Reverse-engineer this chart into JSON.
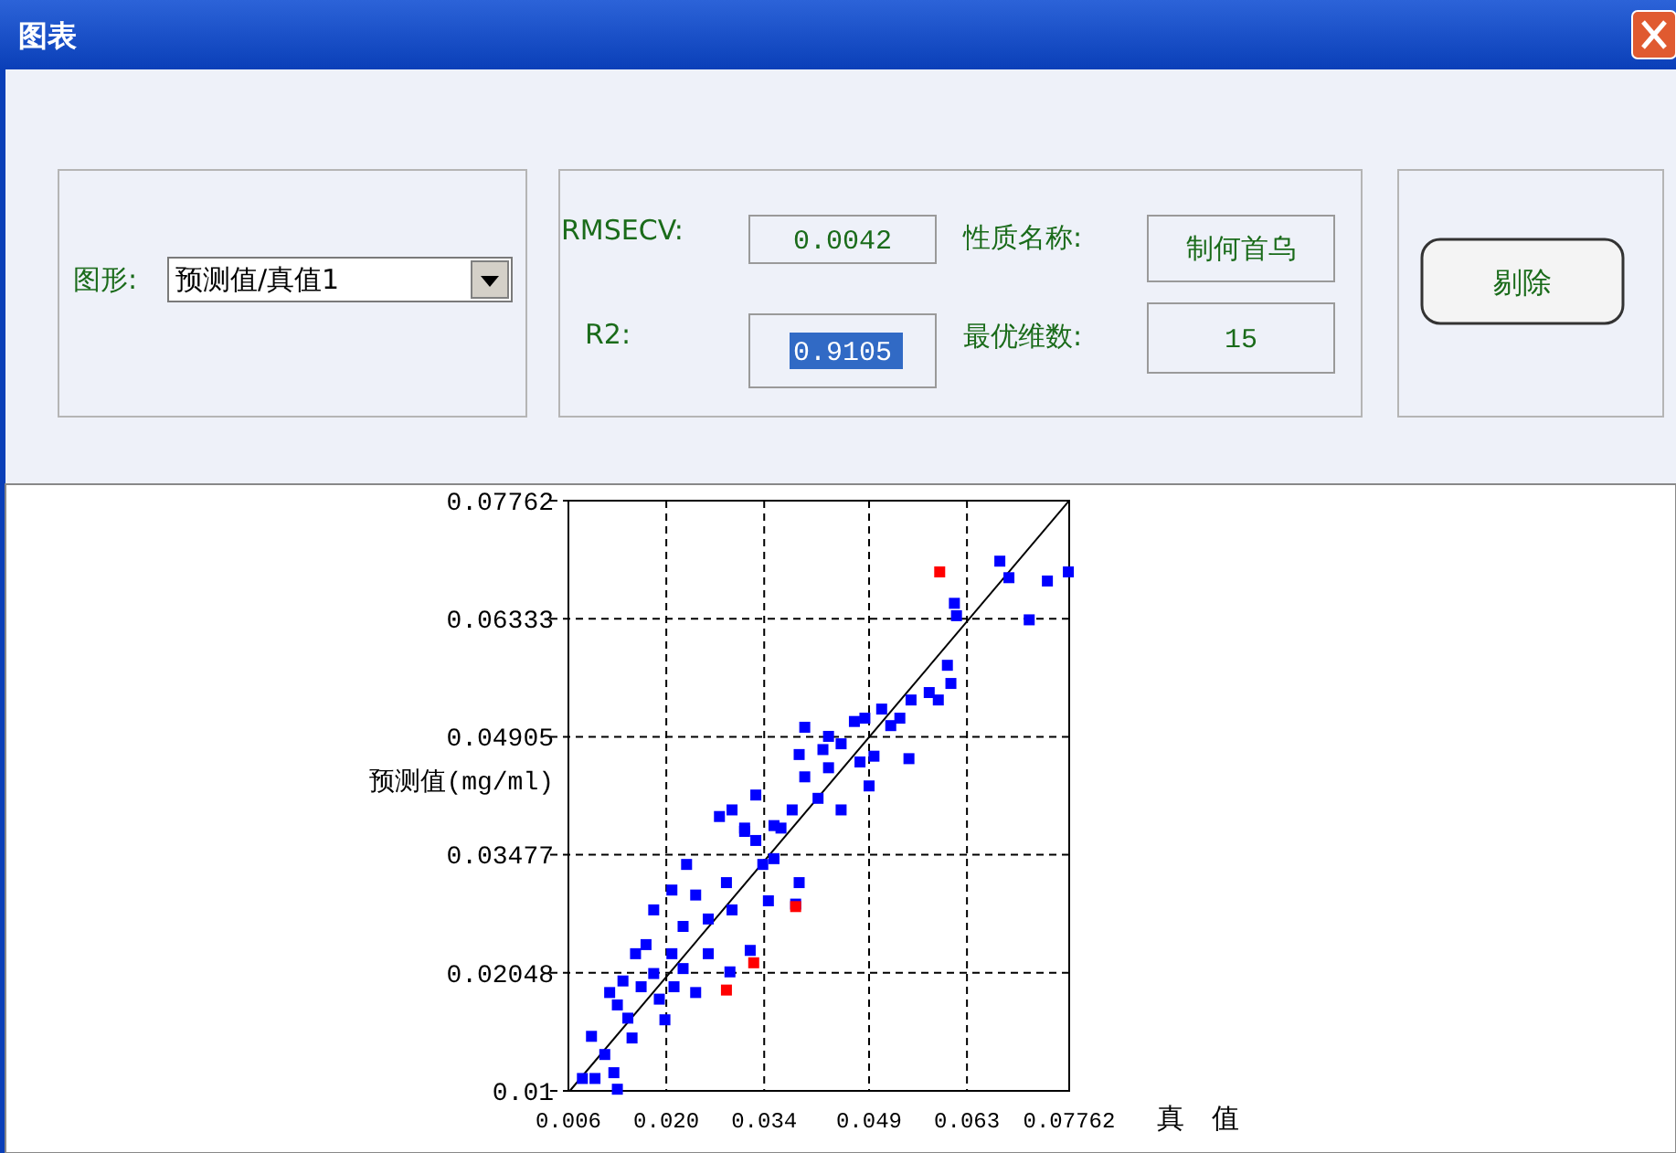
{
  "chart_data": {
    "type": "scatter",
    "title": "图表",
    "xlabel": "真　值",
    "ylabel": "预测值(mg/ml)",
    "annotations": [
      "图形:",
      "预测值/真值1",
      "RMSECV:",
      "0.0042",
      "性质名称:",
      "制何首乌",
      "R2:",
      "0.9105",
      "最优维数:",
      "15",
      "剔除"
    ],
    "xlim": [
      0.006,
      0.07762
    ],
    "ylim": [
      0.0062,
      0.07762
    ],
    "xticks": [
      0.006,
      {
        "value": 0.02,
        "label": "0.020"
      },
      0.034,
      0.049,
      0.063,
      0.07762
    ],
    "yticks": [
      {
        "value": 0.0062,
        "label": "0.01"
      },
      0.02048,
      0.03477,
      0.04905,
      0.06333,
      0.07762
    ],
    "grid": true,
    "marker": "square",
    "series": [
      {
        "type": "line",
        "color": "#000000",
        "marker": "none",
        "x": [
          0.0062,
          0.0776
        ],
        "values": [
          0.0062,
          0.0776
        ]
      },
      {
        "color": "#0000ff",
        "x": [
          0.0677,
          0.069,
          0.0745,
          0.0775,
          0.0719,
          0.0612,
          0.0615,
          0.0602,
          0.0607,
          0.0576,
          0.0589,
          0.055,
          0.0547,
          0.0534,
          0.0521,
          0.0508,
          0.0484,
          0.0469,
          0.0398,
          0.0497,
          0.049,
          0.0477,
          0.045,
          0.0432,
          0.0424,
          0.039,
          0.0398,
          0.0432,
          0.0328,
          0.038,
          0.0417,
          0.045,
          0.0354,
          0.0312,
          0.039,
          0.0385,
          0.032,
          0.0291,
          0.0229,
          0.0338,
          0.0346,
          0.0312,
          0.0364,
          0.0286,
          0.0294,
          0.0242,
          0.026,
          0.0208,
          0.0182,
          0.0224,
          0.026,
          0.0208,
          0.0224,
          0.0242,
          0.0211,
          0.0171,
          0.0156,
          0.0182,
          0.0164,
          0.019,
          0.0198,
          0.0138,
          0.013,
          0.0145,
          0.0119,
          0.0151,
          0.0093,
          0.0112,
          0.008,
          0.0098,
          0.0125,
          0.013,
          0.0294,
          0.0328,
          0.0354,
          0.0276
        ],
        "values": [
          0.0703,
          0.0683,
          0.0679,
          0.069,
          0.0632,
          0.0652,
          0.0637,
          0.0577,
          0.0555,
          0.0544,
          0.0535,
          0.0535,
          0.0464,
          0.0513,
          0.0504,
          0.0524,
          0.0513,
          0.0509,
          0.0502,
          0.0467,
          0.0431,
          0.046,
          0.0482,
          0.0491,
          0.0475,
          0.0469,
          0.0442,
          0.0453,
          0.042,
          0.0402,
          0.0416,
          0.0402,
          0.0383,
          0.0376,
          0.0314,
          0.0288,
          0.0232,
          0.0206,
          0.0336,
          0.0336,
          0.0292,
          0.038,
          0.038,
          0.0314,
          0.0281,
          0.0299,
          0.027,
          0.0305,
          0.0281,
          0.0261,
          0.0228,
          0.0228,
          0.021,
          0.0181,
          0.0188,
          0.0239,
          0.0228,
          0.0204,
          0.0188,
          0.0173,
          0.0148,
          0.0195,
          0.0166,
          0.015,
          0.0181,
          0.0126,
          0.0128,
          0.0106,
          0.0077,
          0.0077,
          0.0084,
          0.0064,
          0.0402,
          0.0365,
          0.0343,
          0.0394
        ]
      },
      {
        "color": "#ff0000",
        "x": [
          0.0591,
          0.0385,
          0.0325,
          0.0286
        ],
        "values": [
          0.069,
          0.0285,
          0.0217,
          0.0184
        ]
      }
    ]
  }
}
